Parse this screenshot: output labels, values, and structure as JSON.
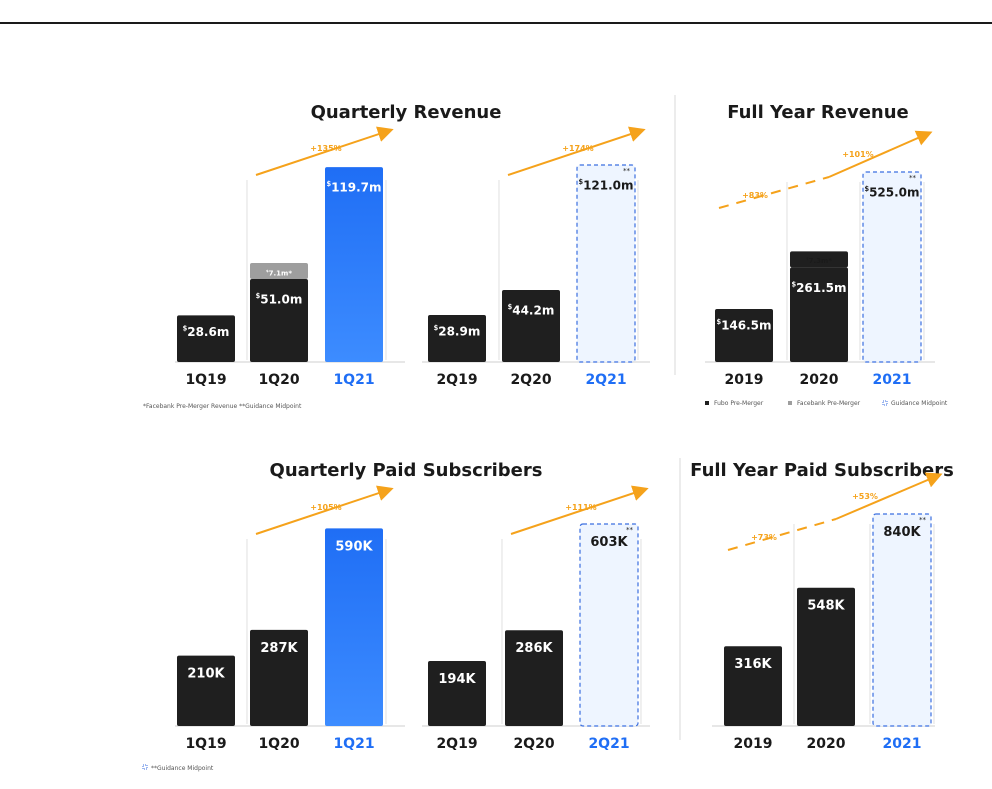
{
  "notes": {
    "revenue_left": "*Facebank Pre-Merger Revenue    **Guidance Midpoint",
    "revenue_right": [
      "Fubo Pre-Merger",
      "Facebank Pre-Merger",
      "Guidance Midpoint"
    ],
    "subs_left": "**Guidance Midpoint"
  },
  "colors": {
    "actual": "#1f1f1f",
    "facebank": "#9e9e9e",
    "highlight": "#1f6ef5",
    "guidance_fill": "#eef5ff",
    "guidance_border": "#3b6fe0",
    "growth": "#f5a21b"
  },
  "chart_data": [
    {
      "type": "bar",
      "title": "Quarterly Revenue",
      "groups": [
        {
          "categories": [
            "1Q19",
            "1Q20",
            "1Q21"
          ],
          "values": [
            28.6,
            51.0,
            119.7
          ],
          "labels": [
            "$28.6m",
            "$51.0m",
            "$119.7m"
          ],
          "growth": "+135%"
        },
        {
          "categories": [
            "2Q19",
            "2Q20",
            "2Q21"
          ],
          "values": [
            28.9,
            44.2,
            121.0
          ],
          "labels": [
            "$28.9m",
            "$44.2m",
            "$121.0m"
          ],
          "growth": "+174%"
        }
      ],
      "stacked_extra": {
        "category": "1Q20",
        "value": 7.1,
        "label": "$7.1m*",
        "series": "Facebank Pre-Merger Revenue"
      },
      "guidance": [
        "2Q21"
      ],
      "highlight": [
        "1Q21"
      ],
      "ylim": [
        0,
        125
      ]
    },
    {
      "type": "bar",
      "title": "Full Year Revenue",
      "categories": [
        "2019",
        "2020",
        "2021"
      ],
      "values": [
        146.5,
        261.5,
        525.0
      ],
      "labels": [
        "$146.5m",
        "$261.5m",
        "$525.0m"
      ],
      "stacked_extra": {
        "category": "2020",
        "value": 7.3,
        "label": "$7.3m*",
        "series": "Facebank Pre-Merger"
      },
      "growth": [
        "+83%",
        "+101%"
      ],
      "guidance": [
        "2021"
      ],
      "ylim": [
        0,
        550
      ]
    },
    {
      "type": "bar",
      "title": "Quarterly Paid Subscribers",
      "groups": [
        {
          "categories": [
            "1Q19",
            "1Q20",
            "1Q21"
          ],
          "values": [
            210,
            287,
            590
          ],
          "labels": [
            "210K",
            "287K",
            "590K"
          ],
          "growth": "+105%"
        },
        {
          "categories": [
            "2Q19",
            "2Q20",
            "2Q21"
          ],
          "values": [
            194,
            286,
            603
          ],
          "labels": [
            "194K",
            "286K",
            "603K"
          ],
          "growth": "+111%"
        }
      ],
      "guidance": [
        "2Q21"
      ],
      "highlight": [
        "1Q21"
      ],
      "ylim": [
        0,
        620
      ]
    },
    {
      "type": "bar",
      "title": "Full Year Paid Subscribers",
      "categories": [
        "2019",
        "2020",
        "2021"
      ],
      "values": [
        316,
        548,
        840
      ],
      "labels": [
        "316K",
        "548K",
        "840K"
      ],
      "growth": [
        "+73%",
        "+53%"
      ],
      "guidance": [
        "2021"
      ],
      "ylim": [
        0,
        880
      ]
    }
  ]
}
